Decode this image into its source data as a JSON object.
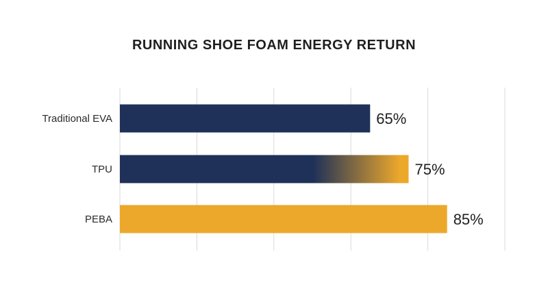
{
  "chart_data": {
    "type": "bar",
    "orientation": "horizontal",
    "title": "RUNNING SHOE FOAM ENERGY RETURN",
    "categories": [
      "Traditional EVA",
      "TPU",
      "PEBA"
    ],
    "values": [
      65,
      75,
      85
    ],
    "value_labels": [
      "65%",
      "75%",
      "85%"
    ],
    "xlim": [
      0,
      100
    ],
    "grid": true,
    "colors": {
      "navy": "#1f3158",
      "gold": "#eca82b"
    },
    "bar_fills": [
      "navy",
      "navy-to-gold-gradient",
      "gold"
    ]
  }
}
